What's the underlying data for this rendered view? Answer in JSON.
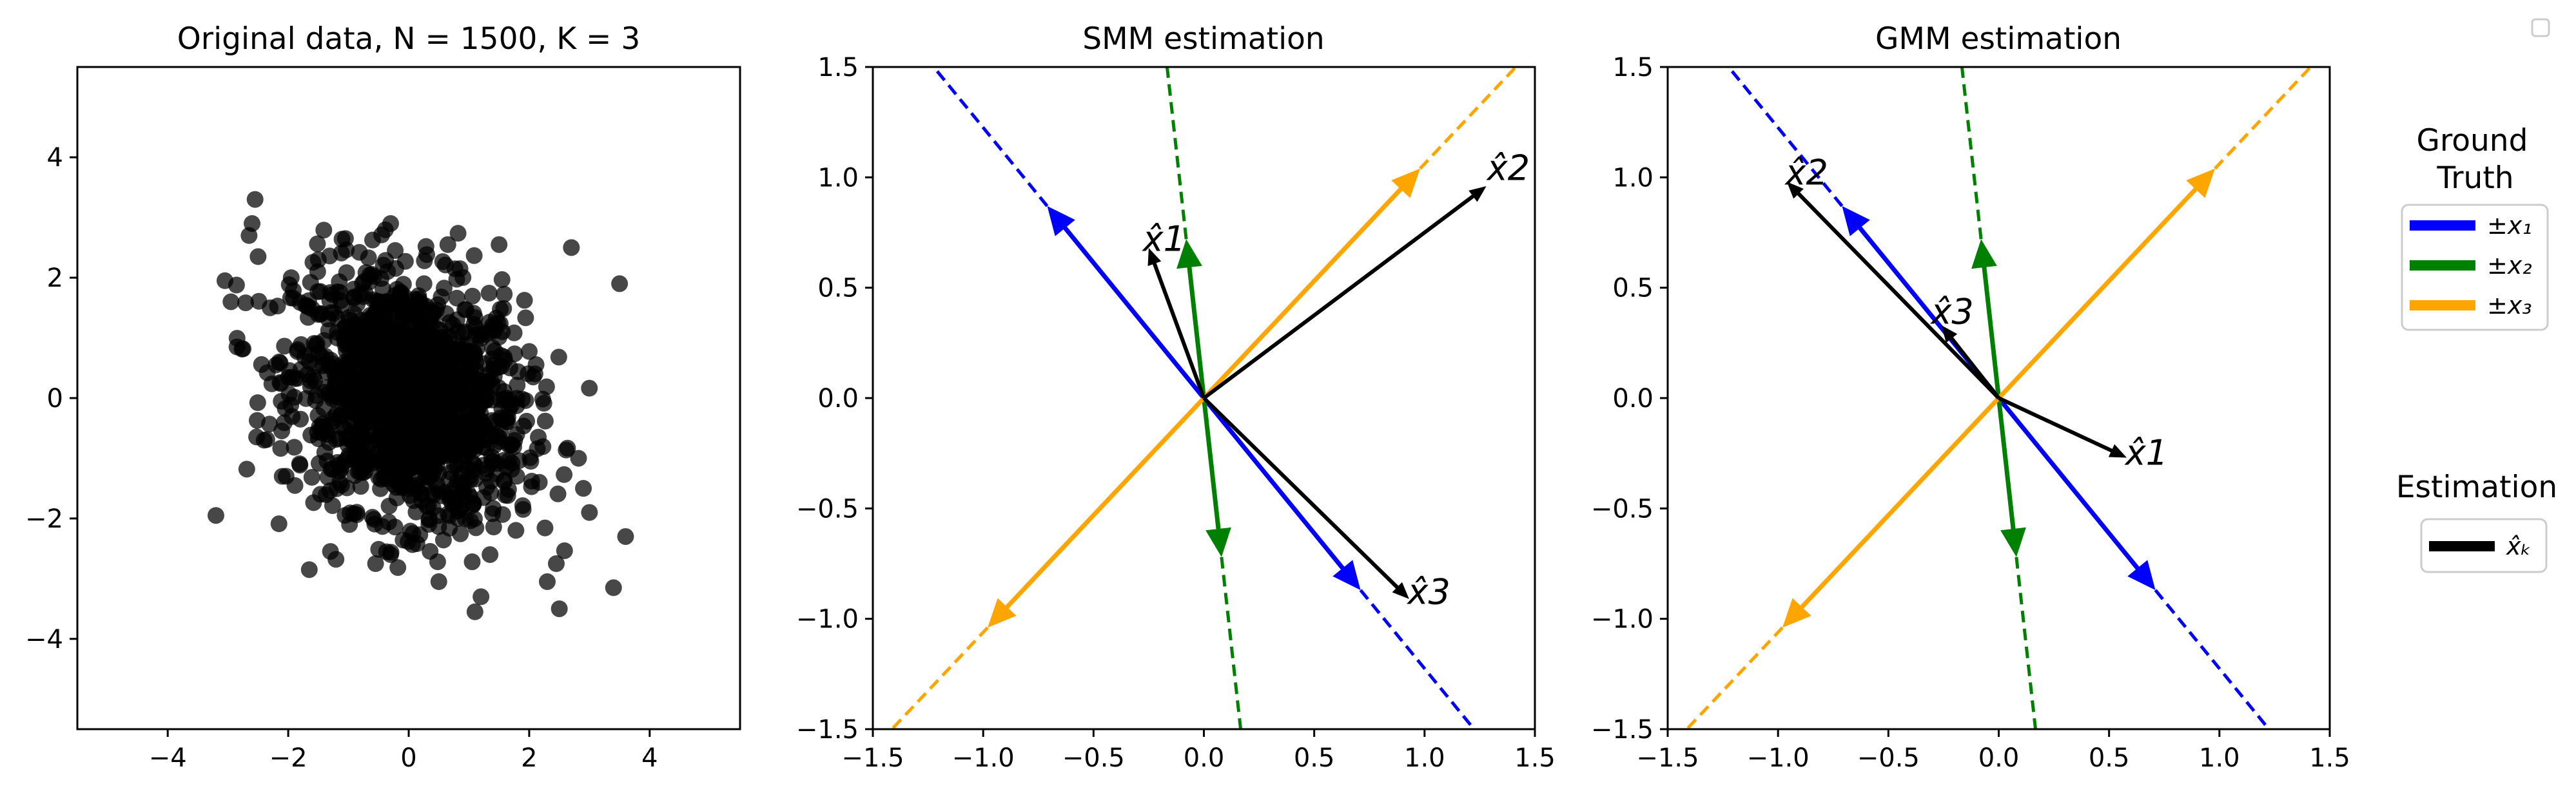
{
  "colors": {
    "x1": "#0000ff",
    "x2": "#008000",
    "x3": "#ffa500",
    "estimate": "#000000",
    "points": "#000000"
  },
  "chart_data": [
    {
      "type": "scatter",
      "title": "Original data, N = 1500, K = 3",
      "xlim": [
        -5.5,
        5.5
      ],
      "ylim": [
        -5.5,
        5.5
      ],
      "xticks": [
        -4,
        -2,
        0,
        2,
        4
      ],
      "yticks": [
        -4,
        -2,
        0,
        2,
        4
      ],
      "x_tick_labels": [
        "−4",
        "−2",
        "0",
        "2",
        "4"
      ],
      "y_tick_labels": [
        "−4",
        "−2",
        "0",
        "2",
        "4"
      ],
      "n_points": 1500,
      "grid": false,
      "outlier_points": [
        [
          -3.2,
          -1.95
        ],
        [
          -3.05,
          1.95
        ],
        [
          -2.95,
          1.6
        ],
        [
          -2.85,
          0.85
        ],
        [
          -2.65,
          2.7
        ],
        [
          -2.55,
          3.3
        ],
        [
          -2.6,
          2.9
        ],
        [
          -2.5,
          2.35
        ],
        [
          -2.4,
          -0.7
        ],
        [
          -2.3,
          1.5
        ],
        [
          -2.15,
          0.6
        ],
        [
          -2.1,
          -1.3
        ],
        [
          -1.95,
          2.0
        ],
        [
          -1.65,
          -2.85
        ],
        [
          -1.5,
          2.3
        ],
        [
          -1.05,
          2.65
        ],
        [
          -0.3,
          2.9
        ],
        [
          0.65,
          2.55
        ],
        [
          1.5,
          2.55
        ],
        [
          2.7,
          2.5
        ],
        [
          3.5,
          1.9
        ],
        [
          3.6,
          -2.3
        ],
        [
          3.4,
          -3.15
        ],
        [
          2.5,
          -3.5
        ],
        [
          2.3,
          -3.05
        ],
        [
          1.9,
          -1.85
        ],
        [
          2.9,
          -1.5
        ],
        [
          3.0,
          -1.9
        ],
        [
          1.1,
          -3.55
        ],
        [
          1.2,
          -3.3
        ],
        [
          0.5,
          -3.05
        ],
        [
          2.45,
          -2.75
        ],
        [
          -0.55,
          -2.75
        ],
        [
          1.35,
          -2.6
        ],
        [
          -0.3,
          -2.6
        ]
      ]
    },
    {
      "type": "line",
      "title": "SMM estimation",
      "xlim": [
        -1.5,
        1.5
      ],
      "ylim": [
        -1.5,
        1.5
      ],
      "xticks": [
        -1.5,
        -1.0,
        -0.5,
        0.0,
        0.5,
        1.0,
        1.5
      ],
      "yticks": [
        -1.5,
        -1.0,
        -0.5,
        0.0,
        0.5,
        1.0,
        1.5
      ],
      "x_tick_labels": [
        "−1.5",
        "−1.0",
        "−0.5",
        "0.0",
        "0.5",
        "1.0",
        "1.5"
      ],
      "y_tick_labels": [
        "−1.5",
        "−1.0",
        "−0.5",
        "0.0",
        "0.5",
        "1.0",
        "1.5"
      ],
      "ground_truth": [
        {
          "name": "x1",
          "vector": [
            -0.71,
            0.87
          ]
        },
        {
          "name": "x2",
          "vector": [
            -0.08,
            0.72
          ]
        },
        {
          "name": "x3",
          "vector": [
            0.98,
            1.04
          ]
        }
      ],
      "estimates": [
        {
          "label": "x̂1",
          "vector": [
            -0.25,
            0.68
          ],
          "label_pos": [
            -0.18,
            0.72
          ]
        },
        {
          "label": "x̂2",
          "vector": [
            1.28,
            0.96
          ],
          "label_pos": [
            1.38,
            1.04
          ]
        },
        {
          "label": "x̂3",
          "vector": [
            0.93,
            -0.91
          ],
          "label_pos": [
            1.02,
            -0.88
          ]
        }
      ]
    },
    {
      "type": "line",
      "title": "GMM estimation",
      "xlim": [
        -1.5,
        1.5
      ],
      "ylim": [
        -1.5,
        1.5
      ],
      "xticks": [
        -1.5,
        -1.0,
        -0.5,
        0.0,
        0.5,
        1.0,
        1.5
      ],
      "yticks": [
        -1.5,
        -1.0,
        -0.5,
        0.0,
        0.5,
        1.0,
        1.5
      ],
      "x_tick_labels": [
        "−1.5",
        "−1.0",
        "−0.5",
        "0.0",
        "0.5",
        "1.0",
        "1.5"
      ],
      "y_tick_labels": [
        "−1.5",
        "−1.0",
        "−0.5",
        "0.0",
        "0.5",
        "1.0",
        "1.5"
      ],
      "ground_truth": [
        {
          "name": "x1",
          "vector": [
            -0.71,
            0.87
          ]
        },
        {
          "name": "x2",
          "vector": [
            -0.08,
            0.72
          ]
        },
        {
          "name": "x3",
          "vector": [
            0.98,
            1.04
          ]
        }
      ],
      "estimates": [
        {
          "label": "x̂1",
          "vector": [
            0.58,
            -0.27
          ],
          "label_pos": [
            0.67,
            -0.25
          ]
        },
        {
          "label": "x̂2",
          "vector": [
            -0.96,
            0.98
          ],
          "label_pos": [
            -0.87,
            1.02
          ]
        },
        {
          "label": "x̂3",
          "vector": [
            -0.26,
            0.33
          ],
          "label_pos": [
            -0.21,
            0.39
          ]
        }
      ]
    }
  ],
  "legend_ground_truth": {
    "title_line1": "Ground",
    "title_line2": "Truth",
    "entries": [
      {
        "label": "±x₁",
        "color": "#0000ff"
      },
      {
        "label": "±x₂",
        "color": "#008000"
      },
      {
        "label": "±x₃",
        "color": "#ffa500"
      }
    ]
  },
  "legend_estimation": {
    "title": "Estimation",
    "entries": [
      {
        "label": "x̂ₖ",
        "color": "#000000"
      }
    ]
  }
}
